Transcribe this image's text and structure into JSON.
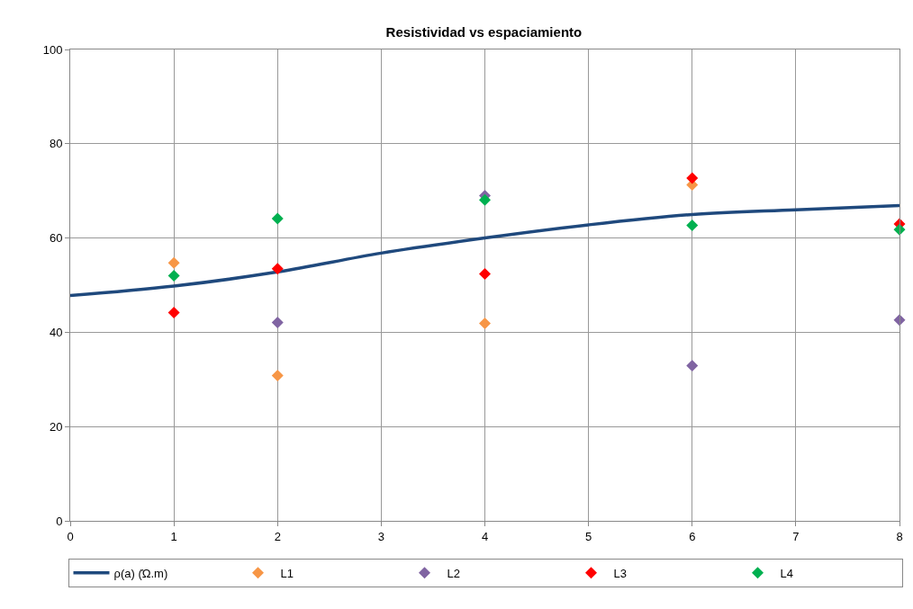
{
  "chart_data": {
    "type": "scatter",
    "title": "Resistividad vs espaciamiento",
    "x": [
      1,
      2,
      4,
      6,
      8
    ],
    "series": [
      {
        "name": "ρ(a) (Ώ.m)",
        "type": "line",
        "color": "#1f497d",
        "x": [
          0,
          1,
          2,
          3,
          4,
          5,
          6,
          7,
          8
        ],
        "values": [
          47.8,
          49.8,
          52.8,
          56.8,
          60,
          62.8,
          65,
          66,
          66.9
        ],
        "marker": "none",
        "line_style": "solid"
      },
      {
        "name": "L1",
        "color": "#f79646",
        "values": [
          54.7,
          30.8,
          41.9,
          71.3,
          null
        ]
      },
      {
        "name": "L2",
        "color": "#8064a2",
        "values": [
          null,
          42.1,
          69,
          32.9,
          42.6
        ]
      },
      {
        "name": "L3",
        "color": "#ff0000",
        "values": [
          44.2,
          53.5,
          52.4,
          72.7,
          63
        ]
      },
      {
        "name": "L4",
        "color": "#00b050",
        "values": [
          52,
          64.1,
          68.1,
          62.7,
          61.8
        ]
      }
    ],
    "marker": "diamond",
    "xlim": [
      0,
      8
    ],
    "xticks": [
      0,
      1,
      2,
      3,
      4,
      5,
      6,
      7,
      8
    ],
    "ylim": [
      0,
      100
    ],
    "yticks": [
      0,
      20,
      40,
      60,
      80,
      100
    ],
    "grid": true,
    "legend": "bottom"
  }
}
